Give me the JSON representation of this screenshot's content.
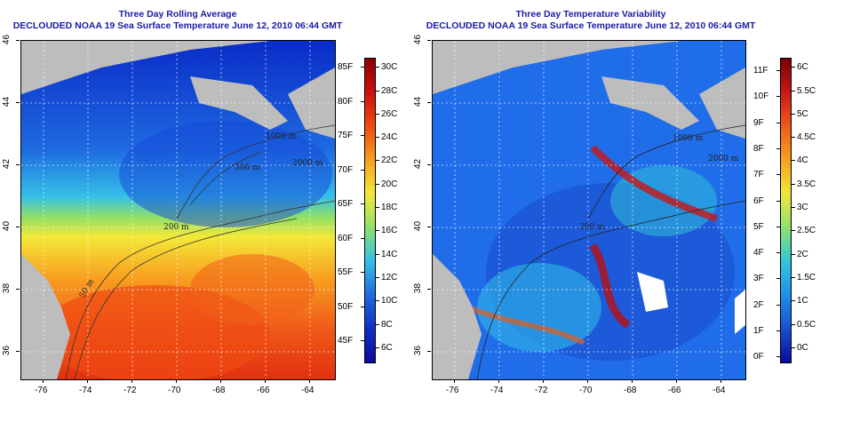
{
  "left_panel": {
    "title_line1": "Three Day Rolling Average",
    "title_line2": "DECLOUDED NOAA 19 Sea Surface Temperature June 12, 2010 06:44 GMT",
    "colorbar_c": [
      "30C",
      "28C",
      "26C",
      "24C",
      "22C",
      "20C",
      "18C",
      "16C",
      "14C",
      "12C",
      "10C",
      "8C",
      "6C"
    ],
    "colorbar_f": [
      "85F",
      "80F",
      "75F",
      "70F",
      "65F",
      "60F",
      "55F",
      "50F",
      "45F"
    ],
    "contours": [
      "50 m",
      "200 m",
      "300 m",
      "1000 m",
      "2000 m"
    ]
  },
  "right_panel": {
    "title_line1": "Three Day Temperature Variability",
    "title_line2": "DECLOUDED NOAA 19 Sea Surface Temperature June 12, 2010 06:44 GMT",
    "colorbar_c": [
      "6C",
      "5.5C",
      "5C",
      "4.5C",
      "4C",
      "3.5C",
      "3C",
      "2.5C",
      "2C",
      "1.5C",
      "1C",
      "0.5C",
      "0C"
    ],
    "colorbar_f": [
      "11F",
      "10F",
      "9F",
      "8F",
      "7F",
      "6F",
      "5F",
      "4F",
      "3F",
      "2F",
      "1F",
      "0F"
    ],
    "contours": [
      "200 m",
      "1000 m",
      "2000 m"
    ]
  },
  "axes": {
    "lon_ticks": [
      "-76",
      "-74",
      "-72",
      "-70",
      "-68",
      "-66",
      "-64"
    ],
    "lat_ticks": [
      "46",
      "44",
      "42",
      "40",
      "38",
      "36"
    ]
  },
  "colors": {
    "land": "#bdbdbd",
    "title": "#1a1aa6"
  }
}
